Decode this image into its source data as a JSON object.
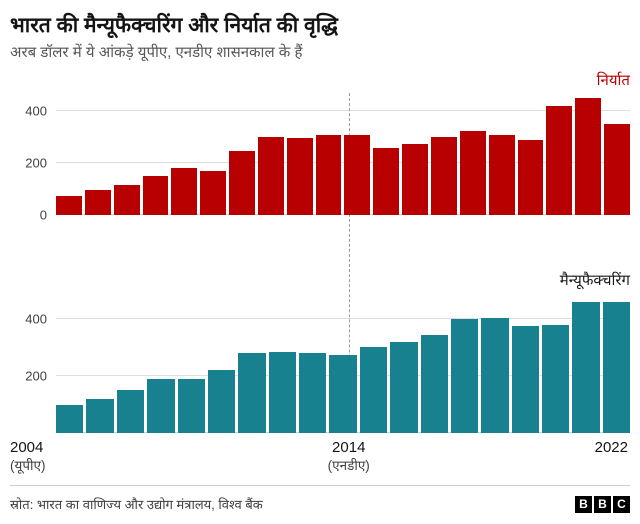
{
  "header": {
    "title": "भारत की मैन्यूफैक्चरिंग और निर्यात की वृद्धि",
    "subtitle": "अरब डॉलर में ये आंकड़े यूपीए, एनडीए शासनकाल के हैं"
  },
  "chart_data": [
    {
      "type": "bar",
      "name": "exports",
      "label": "निर्यात",
      "color": "#b80000",
      "x_years": [
        2004,
        2005,
        2006,
        2007,
        2008,
        2009,
        2010,
        2011,
        2012,
        2013,
        2014,
        2015,
        2016,
        2017,
        2018,
        2019,
        2020,
        2021,
        2022,
        2023
      ],
      "values": [
        75,
        95,
        115,
        150,
        180,
        170,
        245,
        300,
        295,
        310,
        310,
        260,
        275,
        300,
        325,
        310,
        290,
        420,
        450,
        350
      ],
      "yticks": [
        0,
        200,
        400
      ],
      "ylim": [
        0,
        470
      ],
      "grid": true,
      "era_divider_after_year": 2013
    },
    {
      "type": "bar",
      "name": "manufacturing",
      "label": "मैन्यूफैक्चरिंग",
      "color": "#17818f",
      "x_years": [
        2004,
        2005,
        2006,
        2007,
        2008,
        2009,
        2010,
        2011,
        2012,
        2013,
        2014,
        2015,
        2016,
        2017,
        2018,
        2019,
        2020,
        2021,
        2022
      ],
      "values": [
        100,
        120,
        150,
        190,
        190,
        220,
        280,
        285,
        280,
        275,
        300,
        320,
        345,
        400,
        405,
        375,
        380,
        460,
        460
      ],
      "yticks": [
        200,
        400
      ],
      "ylim": [
        0,
        470
      ],
      "grid": true,
      "era_divider_after_year": 2013
    }
  ],
  "x_axis": {
    "ticks": [
      {
        "year": "2004",
        "era": "(यूपीए)"
      },
      {
        "year": "2014",
        "era": "(एनडीए)"
      },
      {
        "year": "2022",
        "era": ""
      }
    ]
  },
  "footer": {
    "source": "स्रोत: भारत का वाणिज्य और उद्योग मंत्रालय, विश्व बैंक",
    "logo": [
      "B",
      "B",
      "C"
    ]
  }
}
